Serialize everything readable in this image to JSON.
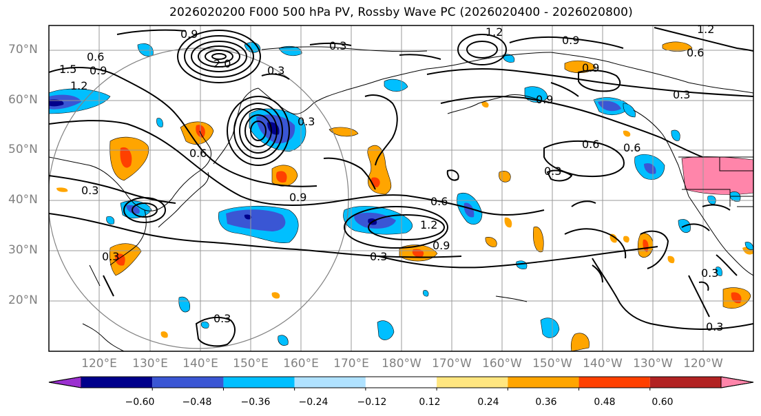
{
  "title": "2026020200 F000 500 hPa PV, Rossby Wave PC (2026020400 - 2026020800)",
  "lat_labels": [
    "70°N",
    "60°N",
    "50°N",
    "40°N",
    "30°N",
    "20°N"
  ],
  "lon_labels": [
    "120°E",
    "130°E",
    "140°E",
    "150°E",
    "160°E",
    "170°E",
    "180°W",
    "170°W",
    "160°W",
    "150°W",
    "140°W",
    "130°W",
    "120°W"
  ],
  "contour_labels": [
    "0.9",
    "0.3",
    "2.0",
    "0.3",
    "0.6",
    "0.9",
    "1.5",
    "1.2",
    "0.3",
    "0.6",
    "0.3",
    "0.9",
    "0.6",
    "0.6",
    "0.3",
    "0.9",
    "0.3",
    "0.6",
    "1.2",
    "0.9",
    "0.3",
    "0.9",
    "1.2",
    "1.2",
    "0.9",
    "0.6",
    "0.3",
    "0.3",
    "0.3",
    "0.3"
  ],
  "colorbar": {
    "ticks": [
      "−0.60",
      "−0.48",
      "−0.36",
      "−0.24",
      "−0.12",
      "0.12",
      "0.24",
      "0.36",
      "0.48",
      "0.60"
    ],
    "colors": [
      "#9b30d0",
      "#00008b",
      "#3a56d4",
      "#00bfff",
      "#b0e2ff",
      "#ffffff",
      "#ffe680",
      "#ffa500",
      "#ff4000",
      "#b22222",
      "#ff85aa"
    ]
  },
  "colors": {
    "frame": "#000000",
    "grid": "#999999",
    "coast": "#000000",
    "circle": "#808080",
    "contour": "#000000",
    "axis_text": "#808080"
  }
}
